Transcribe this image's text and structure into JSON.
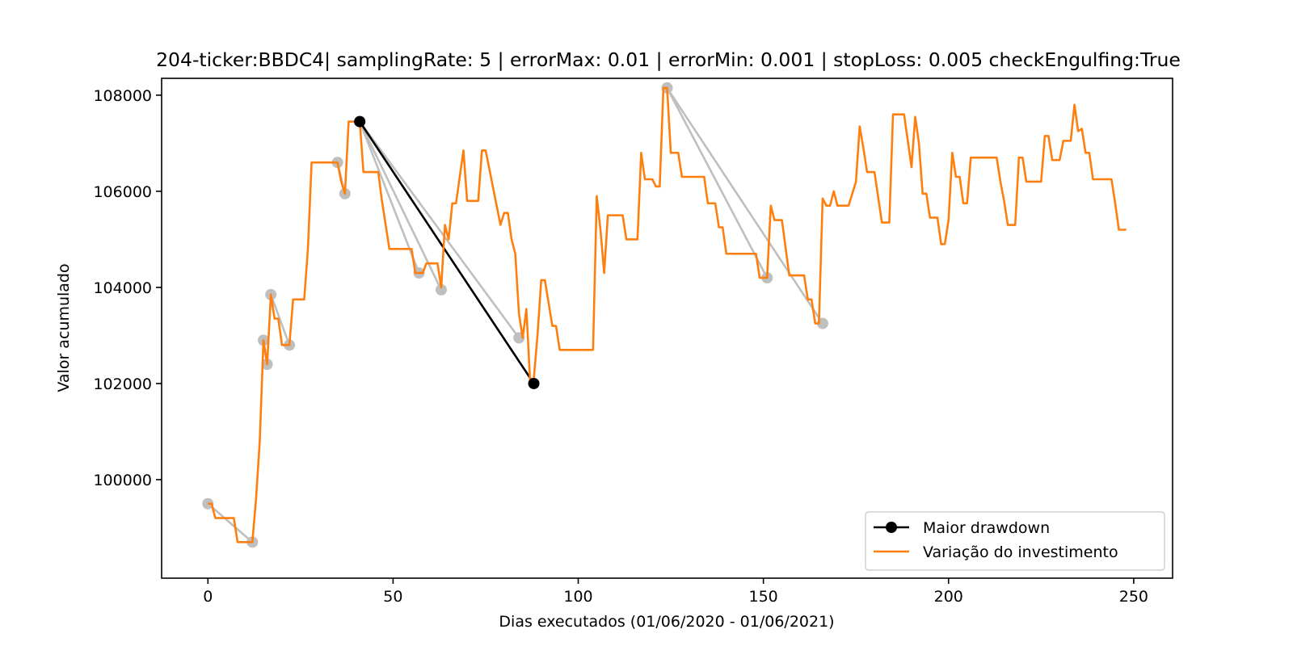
{
  "chart_data": {
    "type": "line",
    "title": "204-ticker:BBDC4| samplingRate: 5 | errorMax: 0.01 | errorMin: 0.001 | stopLoss: 0.005 checkEngulfing:True",
    "xlabel": "Dias executados (01/06/2020 - 01/06/2021)",
    "ylabel": "Valor acumulado",
    "xlim": [
      -12.5,
      260.5
    ],
    "ylim": [
      97950,
      108350
    ],
    "xticks": [
      0,
      50,
      100,
      150,
      200,
      250
    ],
    "yticks": [
      100000,
      102000,
      104000,
      106000,
      108000
    ],
    "grid": false,
    "legend_position": "lower-right",
    "colors": {
      "investment": "#ff7f0e",
      "drawdown": "#000000",
      "candidate": "#bfbfbf"
    },
    "series": [
      {
        "name": "Variação do investimento",
        "points": [
          [
            0,
            99500
          ],
          [
            1,
            99500
          ],
          [
            2,
            99200
          ],
          [
            3,
            99200
          ],
          [
            7,
            99200
          ],
          [
            8,
            98700
          ],
          [
            12,
            98700
          ],
          [
            13,
            99600
          ],
          [
            14,
            100800
          ],
          [
            15,
            102900
          ],
          [
            16,
            102400
          ],
          [
            17,
            103850
          ],
          [
            18,
            103350
          ],
          [
            19,
            103350
          ],
          [
            20,
            102800
          ],
          [
            22,
            102800
          ],
          [
            23,
            103750
          ],
          [
            26,
            103750
          ],
          [
            27,
            104800
          ],
          [
            28,
            106600
          ],
          [
            35,
            106600
          ],
          [
            36,
            106200
          ],
          [
            37,
            105950
          ],
          [
            38,
            107450
          ],
          [
            41,
            107450
          ],
          [
            42,
            106400
          ],
          [
            46,
            106400
          ],
          [
            47,
            105800
          ],
          [
            49,
            104800
          ],
          [
            55,
            104800
          ],
          [
            56,
            104300
          ],
          [
            58,
            104300
          ],
          [
            59,
            104500
          ],
          [
            62,
            104500
          ],
          [
            63,
            104000
          ],
          [
            64,
            105300
          ],
          [
            65,
            105000
          ],
          [
            66,
            105750
          ],
          [
            67,
            105750
          ],
          [
            69,
            106850
          ],
          [
            70,
            105800
          ],
          [
            73,
            105800
          ],
          [
            74,
            106850
          ],
          [
            75,
            106850
          ],
          [
            79,
            105300
          ],
          [
            80,
            105550
          ],
          [
            81,
            105550
          ],
          [
            82,
            105000
          ],
          [
            83,
            104700
          ],
          [
            84,
            103450
          ],
          [
            85,
            102950
          ],
          [
            86,
            103550
          ],
          [
            87,
            102050
          ],
          [
            88,
            102100
          ],
          [
            89,
            103000
          ],
          [
            90,
            104150
          ],
          [
            91,
            104150
          ],
          [
            93,
            103200
          ],
          [
            94,
            103200
          ],
          [
            95,
            102700
          ],
          [
            104,
            102700
          ],
          [
            105,
            105900
          ],
          [
            106,
            105200
          ],
          [
            107,
            104300
          ],
          [
            108,
            105500
          ],
          [
            112,
            105500
          ],
          [
            113,
            105000
          ],
          [
            116,
            105000
          ],
          [
            117,
            106800
          ],
          [
            118,
            106250
          ],
          [
            120,
            106250
          ],
          [
            121,
            106100
          ],
          [
            122,
            106100
          ],
          [
            123,
            108150
          ],
          [
            124,
            108150
          ],
          [
            125,
            106800
          ],
          [
            127,
            106800
          ],
          [
            128,
            106300
          ],
          [
            134,
            106300
          ],
          [
            135,
            105750
          ],
          [
            137,
            105750
          ],
          [
            138,
            105250
          ],
          [
            139,
            105250
          ],
          [
            140,
            104700
          ],
          [
            148,
            104700
          ],
          [
            149,
            104200
          ],
          [
            151,
            104200
          ],
          [
            152,
            105700
          ],
          [
            153,
            105400
          ],
          [
            155,
            105400
          ],
          [
            157,
            104250
          ],
          [
            161,
            104250
          ],
          [
            162,
            103750
          ],
          [
            163,
            103750
          ],
          [
            164,
            103250
          ],
          [
            165,
            103250
          ],
          [
            166,
            105850
          ],
          [
            167,
            105700
          ],
          [
            168,
            105700
          ],
          [
            169,
            106000
          ],
          [
            170,
            105700
          ],
          [
            173,
            105700
          ],
          [
            175,
            106200
          ],
          [
            176,
            107350
          ],
          [
            177,
            106900
          ],
          [
            178,
            106400
          ],
          [
            180,
            106400
          ],
          [
            182,
            105350
          ],
          [
            184,
            105350
          ],
          [
            185,
            107600
          ],
          [
            188,
            107600
          ],
          [
            190,
            106500
          ],
          [
            191,
            107550
          ],
          [
            192,
            107000
          ],
          [
            193,
            105950
          ],
          [
            194,
            105950
          ],
          [
            195,
            105450
          ],
          [
            197,
            105450
          ],
          [
            198,
            104900
          ],
          [
            199,
            104900
          ],
          [
            200,
            105400
          ],
          [
            201,
            106800
          ],
          [
            202,
            106300
          ],
          [
            203,
            106300
          ],
          [
            204,
            105750
          ],
          [
            205,
            105750
          ],
          [
            206,
            106700
          ],
          [
            213,
            106700
          ],
          [
            214,
            106200
          ],
          [
            215,
            105800
          ],
          [
            216,
            105300
          ],
          [
            218,
            105300
          ],
          [
            219,
            106700
          ],
          [
            220,
            106700
          ],
          [
            221,
            106200
          ],
          [
            225,
            106200
          ],
          [
            226,
            107150
          ],
          [
            227,
            107150
          ],
          [
            228,
            106650
          ],
          [
            230,
            106650
          ],
          [
            231,
            107050
          ],
          [
            233,
            107050
          ],
          [
            234,
            107800
          ],
          [
            235,
            107250
          ],
          [
            236,
            107300
          ],
          [
            237,
            106800
          ],
          [
            238,
            106800
          ],
          [
            239,
            106250
          ],
          [
            244,
            106250
          ],
          [
            245,
            105750
          ],
          [
            246,
            105200
          ],
          [
            248,
            105200
          ]
        ]
      },
      {
        "name": "Maior drawdown",
        "points": [
          [
            41,
            107450
          ],
          [
            88,
            102000
          ]
        ]
      }
    ],
    "candidate_drawdowns": [
      [
        [
          0,
          99500
        ],
        [
          12,
          98700
        ]
      ],
      [
        [
          15,
          102900
        ],
        [
          16,
          102400
        ]
      ],
      [
        [
          17,
          103850
        ],
        [
          22,
          102800
        ]
      ],
      [
        [
          35,
          106600
        ],
        [
          37,
          105950
        ]
      ],
      [
        [
          41,
          107450
        ],
        [
          57,
          104300
        ]
      ],
      [
        [
          41,
          107450
        ],
        [
          63,
          103950
        ]
      ],
      [
        [
          41,
          107450
        ],
        [
          84,
          102950
        ]
      ],
      [
        [
          124,
          108150
        ],
        [
          151,
          104200
        ]
      ],
      [
        [
          124,
          108150
        ],
        [
          166,
          103250
        ]
      ]
    ]
  }
}
